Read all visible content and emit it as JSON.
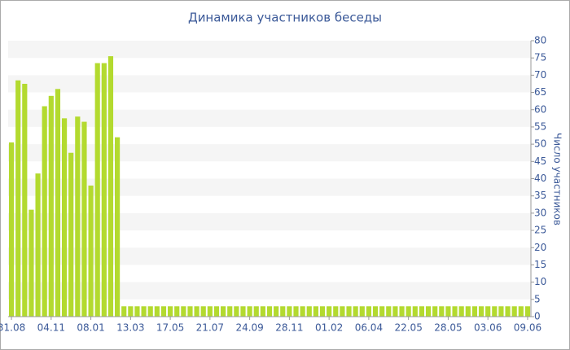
{
  "chart_data": {
    "type": "bar",
    "title": "Динамика участников беседы",
    "y_axis_label": "Число участников",
    "categories": [
      "31.08",
      null,
      null,
      null,
      null,
      null,
      "04.11",
      null,
      null,
      null,
      null,
      null,
      "08.01",
      null,
      null,
      null,
      null,
      null,
      "13.03",
      null,
      null,
      null,
      null,
      null,
      "17.05",
      null,
      null,
      null,
      null,
      null,
      "21.07",
      null,
      null,
      null,
      null,
      null,
      "24.09",
      null,
      null,
      null,
      null,
      null,
      "28.11",
      null,
      null,
      null,
      null,
      null,
      "01.02",
      null,
      null,
      null,
      null,
      null,
      "06.04",
      null,
      null,
      null,
      null,
      null,
      "22.05",
      null,
      null,
      null,
      null,
      null,
      "28.05",
      null,
      null,
      null,
      null,
      null,
      "03.06",
      null,
      null,
      null,
      null,
      null,
      "09.06"
    ],
    "values": [
      50.5,
      68.5,
      67.5,
      31,
      41.5,
      61,
      64,
      66,
      57.5,
      47.5,
      58,
      56.5,
      38,
      73.5,
      73.5,
      75.5,
      52,
      3,
      3,
      3,
      3,
      3,
      3,
      3,
      3,
      3,
      3,
      3,
      3,
      3,
      3,
      3,
      3,
      3,
      3,
      3,
      3,
      3,
      3,
      3,
      3,
      3,
      3,
      3,
      3,
      3,
      3,
      3,
      3,
      3,
      3,
      3,
      3,
      3,
      3,
      3,
      3,
      3,
      3,
      3,
      3,
      3,
      3,
      3,
      3,
      3,
      3,
      3,
      3,
      3,
      3,
      3,
      3,
      3,
      3,
      3,
      3,
      3,
      3
    ],
    "color": "#b3da2f",
    "ylim": [
      0,
      80
    ],
    "yticks": [
      0,
      5,
      10,
      15,
      20,
      25,
      30,
      35,
      40,
      45,
      50,
      55,
      60,
      65,
      70,
      75,
      80
    ],
    "grid": true
  }
}
